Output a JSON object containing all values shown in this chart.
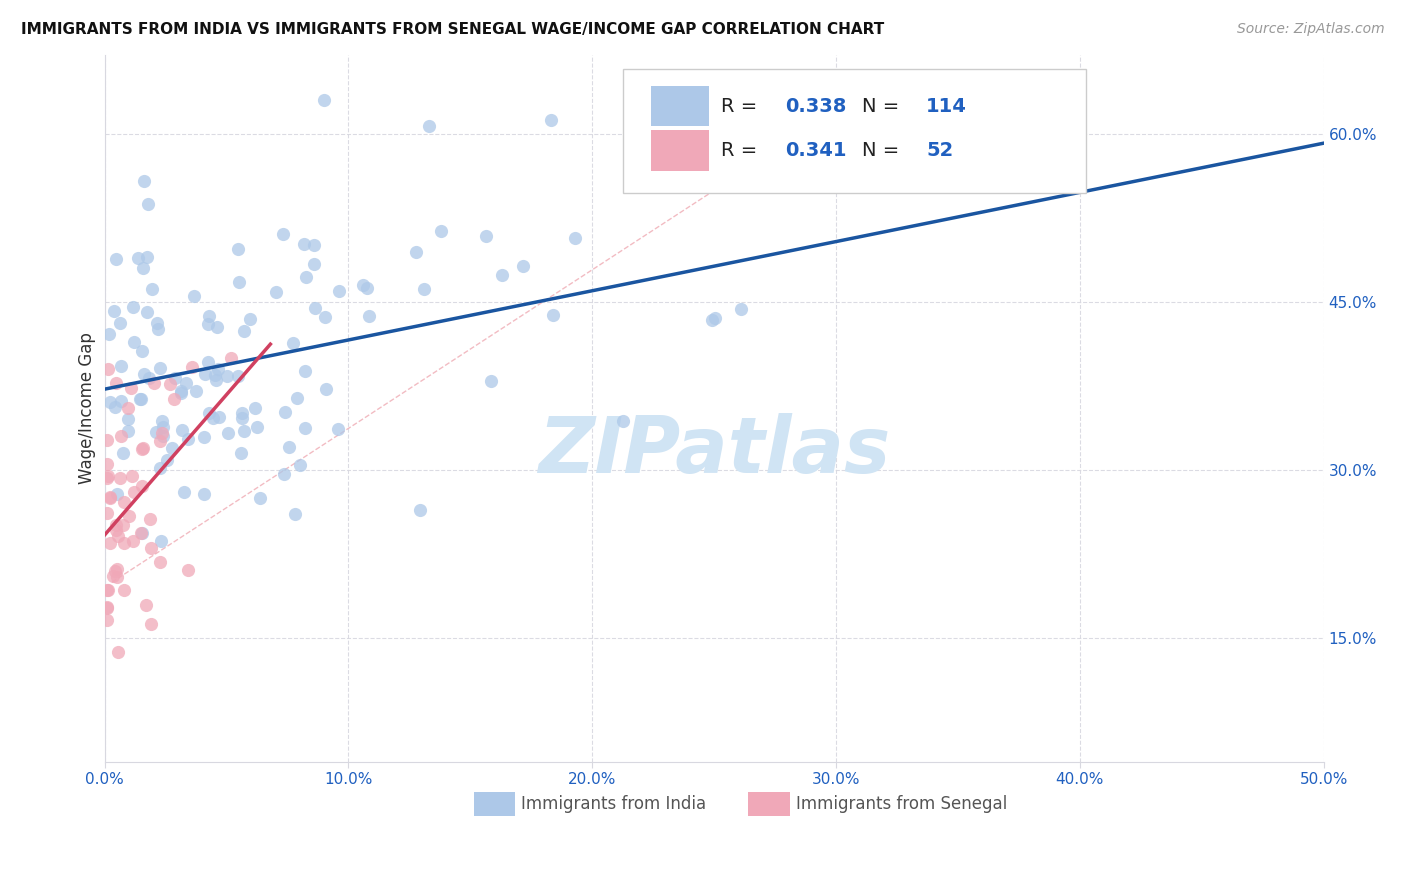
{
  "title": "IMMIGRANTS FROM INDIA VS IMMIGRANTS FROM SENEGAL WAGE/INCOME GAP CORRELATION CHART",
  "source": "Source: ZipAtlas.com",
  "ylabel": "Wage/Income Gap",
  "xlim": [
    0.0,
    0.5
  ],
  "ylim": [
    0.04,
    0.67
  ],
  "xtick_vals": [
    0.0,
    0.1,
    0.2,
    0.3,
    0.4,
    0.5
  ],
  "ytick_vals": [
    0.15,
    0.3,
    0.45,
    0.6
  ],
  "india_R": 0.338,
  "india_N": 114,
  "senegal_R": 0.341,
  "senegal_N": 52,
  "india_color": "#adc8e8",
  "india_edge_color": "#adc8e8",
  "senegal_color": "#f0a8b8",
  "senegal_edge_color": "#f0a8b8",
  "india_line_color": "#1a55a0",
  "senegal_line_color": "#d04060",
  "diag_line_color": "#f0b0b8",
  "axis_color": "#2060c0",
  "text_color": "#333333",
  "grid_color": "#d8d8e0",
  "background_color": "#ffffff",
  "watermark": "ZIPatlas",
  "watermark_color": "#d0e4f4",
  "legend_label_india": "R = 0.338   N = 114",
  "legend_label_senegal": "R = 0.341   N =  52",
  "bottom_label_india": "Immigrants from India",
  "bottom_label_senegal": "Immigrants from Senegal"
}
